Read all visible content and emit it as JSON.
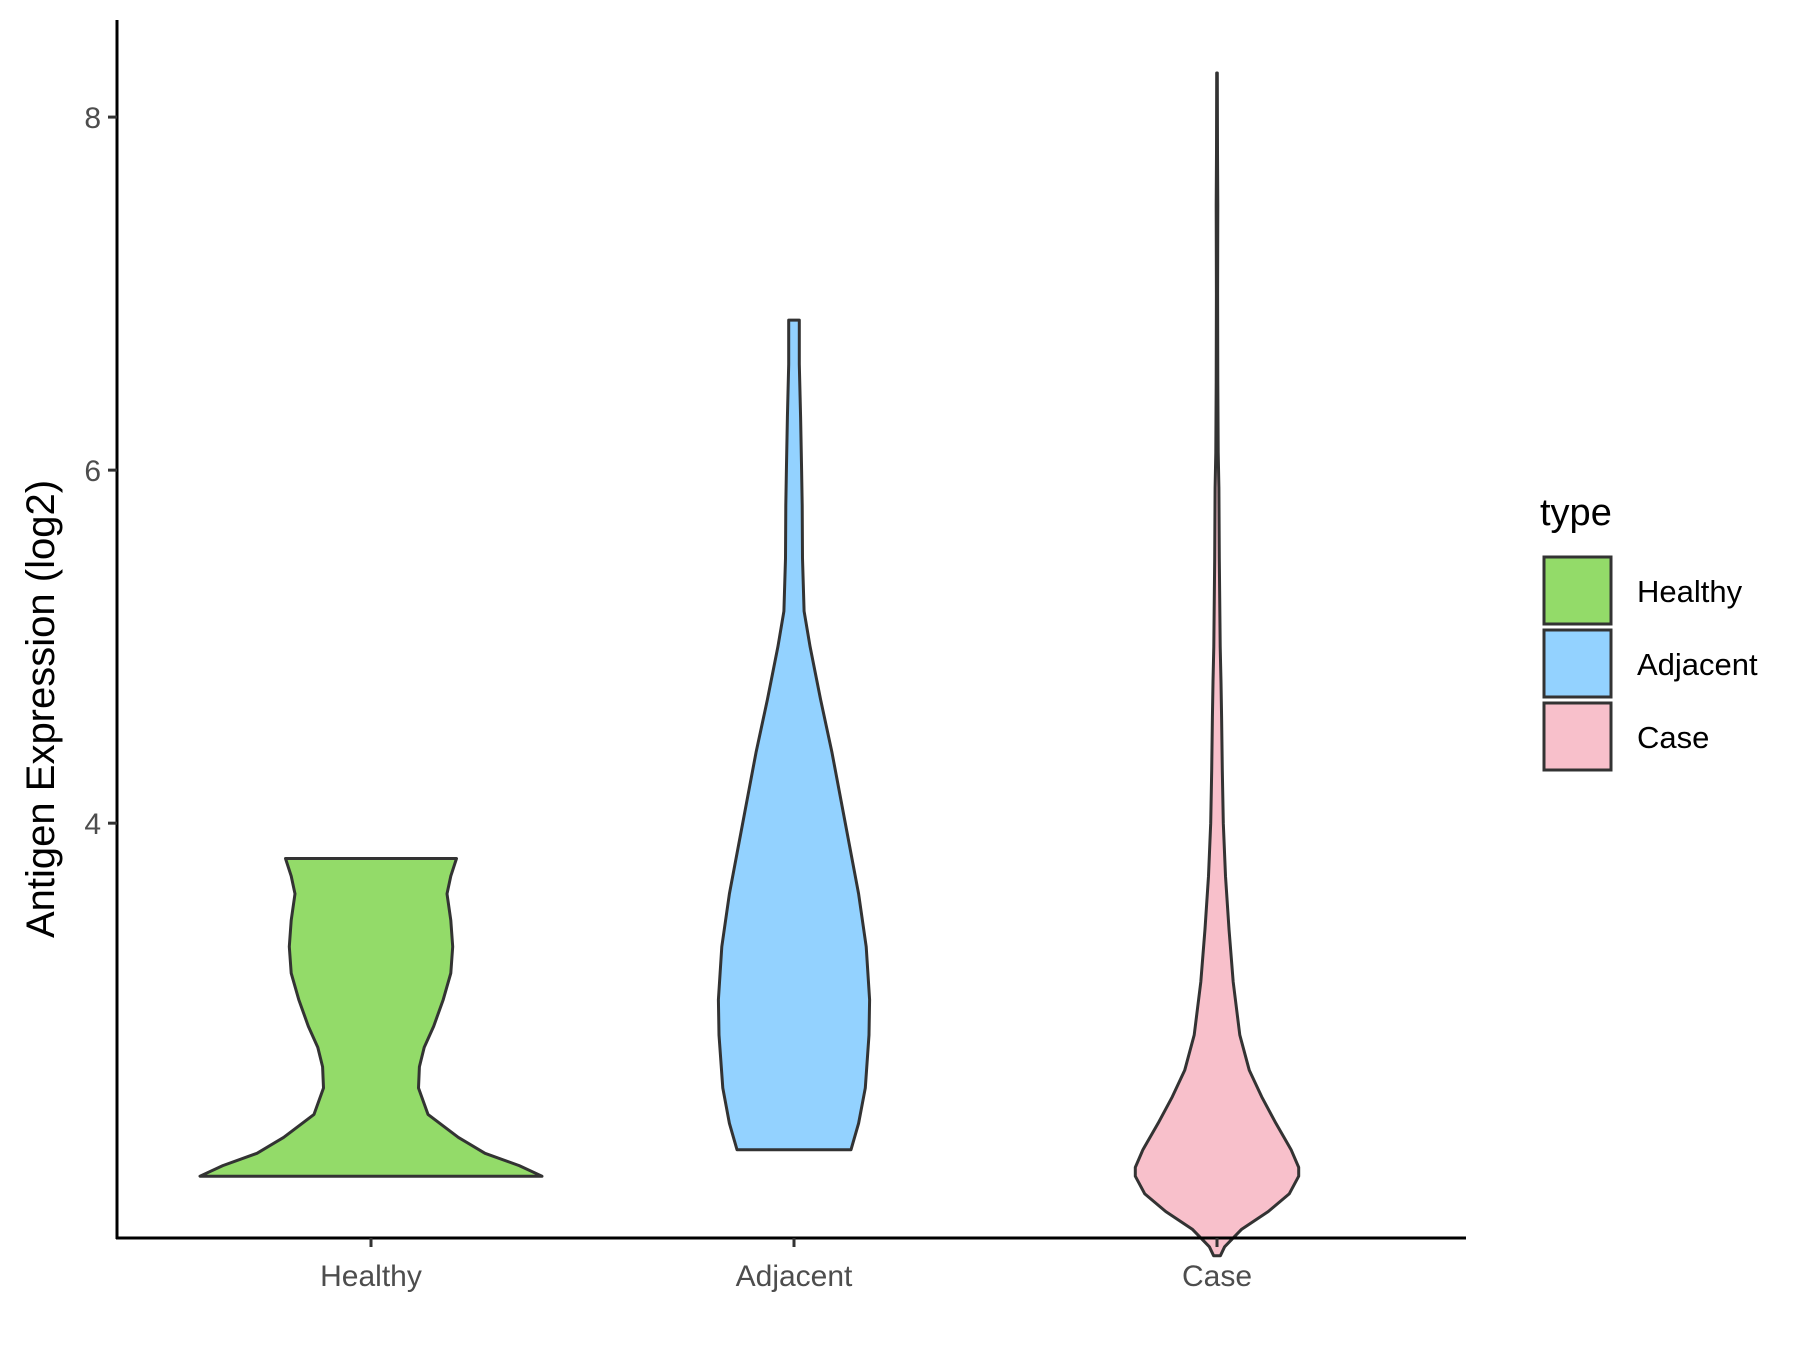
{
  "chart_data": {
    "type": "violin",
    "title": "",
    "xlabel": "",
    "ylabel": "Antigen Expression (log2)",
    "categories": [
      "Healthy",
      "Adjacent",
      "Case"
    ],
    "ylim": [
      1.65,
      8.55
    ],
    "y_ticks": [
      4,
      6,
      8
    ],
    "grid": false,
    "legend": {
      "title": "type",
      "position": "right",
      "entries": [
        {
          "label": "Healthy",
          "color": "#93DB69"
        },
        {
          "label": "Adjacent",
          "color": "#93D2FF"
        },
        {
          "label": "Case",
          "color": "#F8C0CB"
        }
      ]
    },
    "series": [
      {
        "category": "Healthy",
        "color": "#93DB69",
        "y_min": 2.0,
        "y_max": 3.8,
        "profile": [
          [
            2.0,
            0.9
          ],
          [
            2.06,
            0.78
          ],
          [
            2.13,
            0.6
          ],
          [
            2.22,
            0.46
          ],
          [
            2.35,
            0.3
          ],
          [
            2.5,
            0.25
          ],
          [
            2.62,
            0.255
          ],
          [
            2.73,
            0.28
          ],
          [
            2.85,
            0.33
          ],
          [
            3.0,
            0.38
          ],
          [
            3.15,
            0.42
          ],
          [
            3.3,
            0.43
          ],
          [
            3.45,
            0.42
          ],
          [
            3.6,
            0.4
          ],
          [
            3.7,
            0.42
          ],
          [
            3.8,
            0.45
          ]
        ]
      },
      {
        "category": "Adjacent",
        "color": "#93D2FF",
        "y_min": 2.15,
        "y_max": 6.85,
        "profile": [
          [
            2.15,
            0.3
          ],
          [
            2.3,
            0.34
          ],
          [
            2.5,
            0.375
          ],
          [
            2.8,
            0.395
          ],
          [
            3.0,
            0.398
          ],
          [
            3.3,
            0.38
          ],
          [
            3.6,
            0.34
          ],
          [
            4.0,
            0.27
          ],
          [
            4.4,
            0.2
          ],
          [
            4.7,
            0.14
          ],
          [
            5.0,
            0.085
          ],
          [
            5.2,
            0.053
          ],
          [
            5.5,
            0.045
          ],
          [
            5.8,
            0.043
          ],
          [
            6.0,
            0.04
          ],
          [
            6.3,
            0.035
          ],
          [
            6.6,
            0.028
          ],
          [
            6.85,
            0.028
          ]
        ]
      },
      {
        "category": "Case",
        "color": "#F8C0CB",
        "y_min": 1.55,
        "y_max": 8.25,
        "profile": [
          [
            1.55,
            0.018
          ],
          [
            1.6,
            0.04
          ],
          [
            1.7,
            0.13
          ],
          [
            1.8,
            0.27
          ],
          [
            1.9,
            0.38
          ],
          [
            2.0,
            0.43
          ],
          [
            2.05,
            0.43
          ],
          [
            2.15,
            0.39
          ],
          [
            2.3,
            0.31
          ],
          [
            2.45,
            0.235
          ],
          [
            2.6,
            0.17
          ],
          [
            2.8,
            0.12
          ],
          [
            3.1,
            0.085
          ],
          [
            3.4,
            0.063
          ],
          [
            3.7,
            0.045
          ],
          [
            4.0,
            0.033
          ],
          [
            4.3,
            0.028
          ],
          [
            4.6,
            0.024
          ],
          [
            4.8,
            0.021
          ],
          [
            5.0,
            0.017
          ],
          [
            5.5,
            0.012
          ],
          [
            5.9,
            0.01
          ],
          [
            6.1,
            0.0065
          ],
          [
            6.5,
            0.004
          ],
          [
            7.0,
            0.003
          ],
          [
            7.5,
            0.004
          ],
          [
            7.8,
            0.0025
          ],
          [
            8.25,
            0.0015
          ]
        ]
      }
    ]
  }
}
